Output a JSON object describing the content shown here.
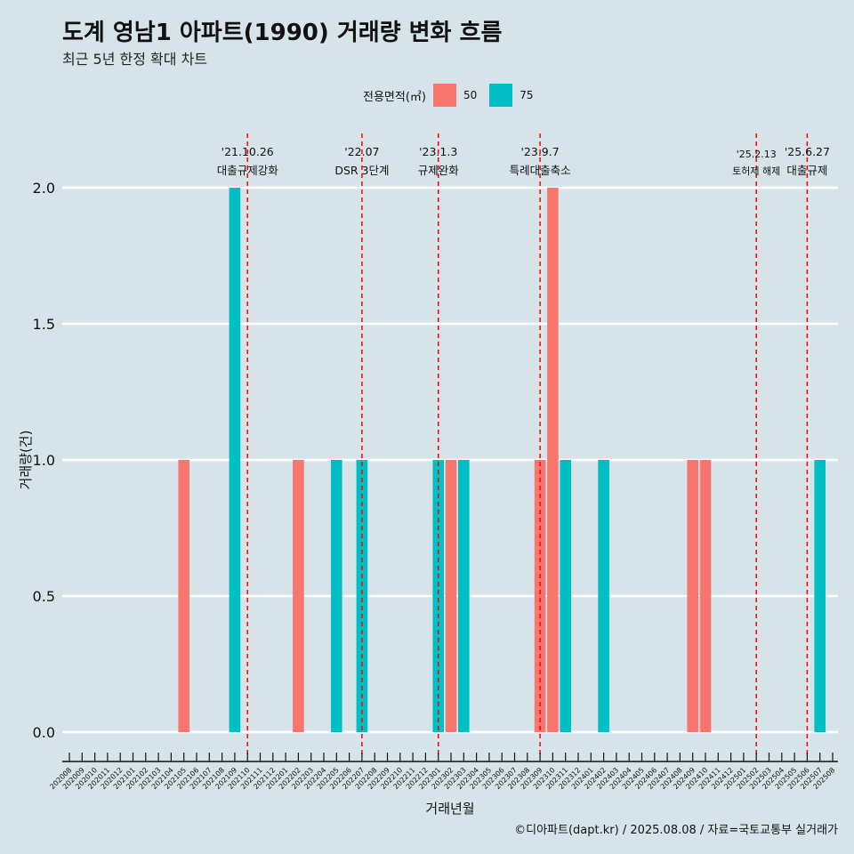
{
  "title": "도계 영남1 아파트(1990) 거래량 변화 흐름",
  "subtitle": "최근 5년 한정 확대 차트",
  "legend": {
    "title": "전용면적(㎡)",
    "items": [
      {
        "label": "50",
        "color": "#F8766D"
      },
      {
        "label": "75",
        "color": "#00BFC4"
      }
    ]
  },
  "caption": "©디아파트(dapt.kr) / 2025.08.08 / 자료=국토교통부 실거래가",
  "colors": {
    "background": "#d6e4ea",
    "grid": "#ffffff",
    "event_line": "#ff0000"
  },
  "chart_data": {
    "type": "bar",
    "xlabel": "거래년월",
    "ylabel": "거래량(건)",
    "ylim": [
      0,
      2
    ],
    "yticks": [
      "0.0",
      "0.5",
      "1.0",
      "1.5",
      "2.0"
    ],
    "grid": true,
    "legend_position": "top",
    "categories": [
      "202008",
      "202009",
      "202010",
      "202011",
      "202012",
      "202101",
      "202102",
      "202103",
      "202104",
      "202105",
      "202106",
      "202107",
      "202108",
      "202109",
      "202110",
      "202111",
      "202112",
      "202201",
      "202202",
      "202203",
      "202204",
      "202205",
      "202206",
      "202207",
      "202208",
      "202209",
      "202210",
      "202211",
      "202212",
      "202301",
      "202302",
      "202303",
      "202304",
      "202305",
      "202306",
      "202307",
      "202308",
      "202309",
      "202310",
      "202311",
      "202312",
      "202401",
      "202402",
      "202403",
      "202404",
      "202405",
      "202406",
      "202407",
      "202408",
      "202409",
      "202410",
      "202411",
      "202412",
      "202501",
      "202502",
      "202503",
      "202504",
      "202505",
      "202506",
      "202507",
      "202508"
    ],
    "series": [
      {
        "name": "50",
        "color": "#F8766D",
        "points": [
          {
            "x": "202105",
            "y": 1
          },
          {
            "x": "202202",
            "y": 1
          },
          {
            "x": "202302",
            "y": 1
          },
          {
            "x": "202309",
            "y": 1
          },
          {
            "x": "202310",
            "y": 2
          },
          {
            "x": "202409",
            "y": 1
          },
          {
            "x": "202410",
            "y": 1
          }
        ]
      },
      {
        "name": "75",
        "color": "#00BFC4",
        "points": [
          {
            "x": "202109",
            "y": 2
          },
          {
            "x": "202205",
            "y": 1
          },
          {
            "x": "202207",
            "y": 1
          },
          {
            "x": "202301",
            "y": 1
          },
          {
            "x": "202303",
            "y": 1
          },
          {
            "x": "202311",
            "y": 1
          },
          {
            "x": "202402",
            "y": 1
          },
          {
            "x": "202507",
            "y": 1
          }
        ]
      }
    ],
    "events": [
      {
        "x": "202110",
        "date": "'21.10.26",
        "label": "대출규제강화"
      },
      {
        "x": "202207",
        "date": "'22.07",
        "label": "DSR 3단계"
      },
      {
        "x": "202301",
        "date": "'23.1.3",
        "label": "규제완화"
      },
      {
        "x": "202309",
        "date": "'23.9.7",
        "label": "특례대출축소"
      },
      {
        "x": "202502",
        "date": "'25.2.13",
        "label": "토허제 해제"
      },
      {
        "x": "202506",
        "date": "'25.6.27",
        "label": "대출규제"
      }
    ]
  }
}
